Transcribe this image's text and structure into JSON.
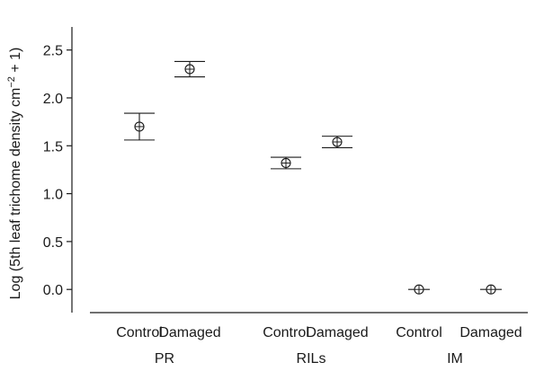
{
  "chart_data": {
    "type": "scatter",
    "ylabel": "Log (5th leaf trichome density cm−2 + 1)",
    "ylabel_parts": {
      "pre": "Log (5th leaf trichome density cm",
      "sup": "−2",
      "post": " + 1)"
    },
    "ylim": [
      -0.12,
      2.6
    ],
    "yticks": [
      0.0,
      0.5,
      1.0,
      1.5,
      2.0,
      2.5
    ],
    "ytick_labels": [
      "0.0",
      "0.5",
      "1.0",
      "1.5",
      "2.0",
      "2.5"
    ],
    "grid": false,
    "groups": [
      "PR",
      "RILs",
      "IM"
    ],
    "points": [
      {
        "group": "PR",
        "treatment": "Control",
        "mean": 1.7,
        "lower": 1.56,
        "upper": 1.84
      },
      {
        "group": "PR",
        "treatment": "Damaged",
        "mean": 2.3,
        "lower": 2.22,
        "upper": 2.38
      },
      {
        "group": "RILs",
        "treatment": "Control",
        "mean": 1.32,
        "lower": 1.26,
        "upper": 1.38
      },
      {
        "group": "RILs",
        "treatment": "Damaged",
        "mean": 1.54,
        "lower": 1.48,
        "upper": 1.6
      },
      {
        "group": "IM",
        "treatment": "Control",
        "mean": 0.0,
        "lower": 0.0,
        "upper": 0.0
      },
      {
        "group": "IM",
        "treatment": "Damaged",
        "mean": 0.0,
        "lower": 0.0,
        "upper": 0.0
      }
    ]
  }
}
